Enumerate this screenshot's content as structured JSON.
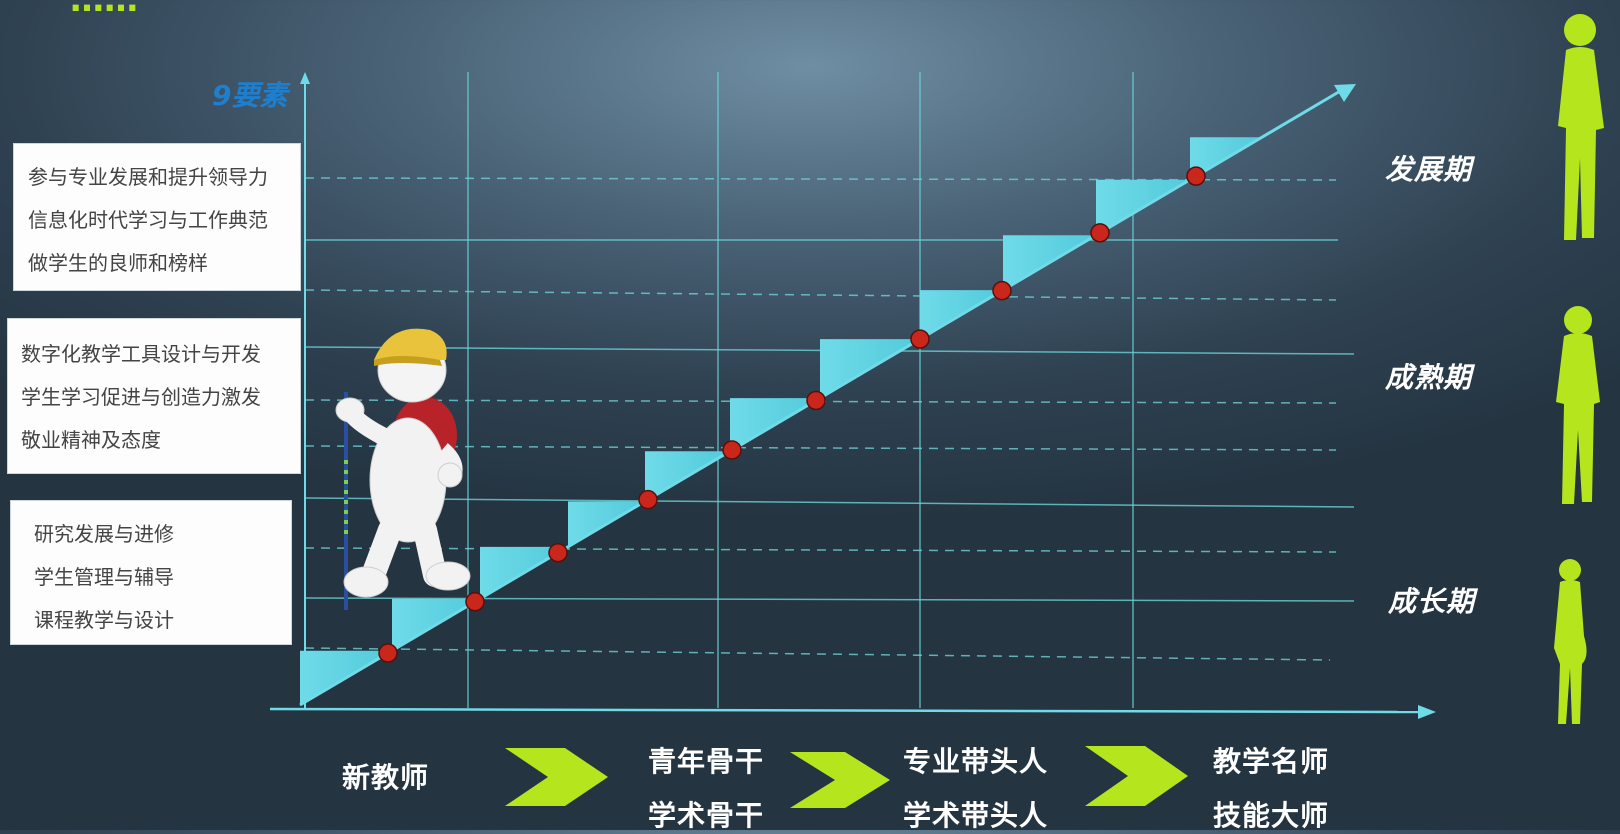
{
  "header": {
    "partial_title": "……"
  },
  "y_axis": {
    "title": "9要素"
  },
  "element_groups": [
    {
      "items": [
        "参与专业发展和提升领导力",
        "信息化时代学习与工作典范",
        "做学生的良师和榜样"
      ]
    },
    {
      "items": [
        "数字化教学工具设计与开发",
        "学生学习促进与创造力激发",
        "敬业精神及态度"
      ]
    },
    {
      "items": [
        "研究发展与进修",
        "学生管理与辅导",
        "课程教学与设计"
      ]
    }
  ],
  "stages": {
    "development": "发展期",
    "mature": "成熟期",
    "growth": "成长期"
  },
  "roles": {
    "new_teacher": "新教师",
    "young_backbone": "青年骨干",
    "academic_backbone": "学术骨干",
    "professional_leader": "专业带头人",
    "academic_leader": "学术带头人",
    "famous_teacher": "教学名师",
    "skill_master": "技能大师"
  },
  "colors": {
    "step_fill": "#5ad0e0",
    "dot_fill": "#c9261c",
    "grid_line": "#6ad3d8",
    "chevron": "#b5e61d",
    "silhouette": "#b5e61d",
    "axis_title": "#1e7fcf"
  },
  "icons": {
    "hiker": "hiker-figure-icon",
    "person_silhouette": "person-silhouette-icon"
  }
}
